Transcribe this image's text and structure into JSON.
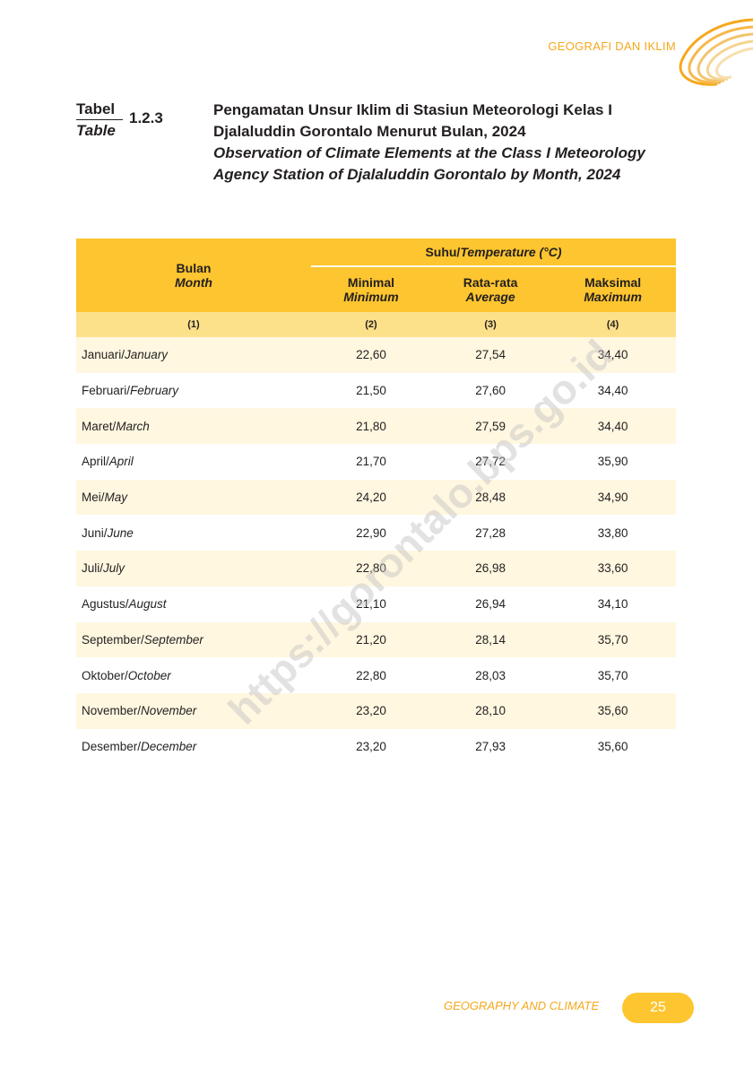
{
  "header": {
    "section": "GEOGRAFI DAN IKLIM"
  },
  "table_meta": {
    "label_id": "Tabel",
    "label_en": "Table",
    "number": "1.2.3",
    "title_id": "Pengamatan Unsur Iklim di Stasiun Meteorologi Kelas I Djalaluddin Gorontalo Menurut Bulan, 2024",
    "title_en": "Observation of Climate Elements at the Class I Meteorology Agency Station of Djalaluddin Gorontalo by Month, 2024"
  },
  "columns": {
    "month_id": "Bulan",
    "month_en": "Month",
    "temp_group_id": "Suhu/",
    "temp_group_en": "Temperature (°C)",
    "min_id": "Minimal",
    "min_en": "Minimum",
    "avg_id": "Rata-rata",
    "avg_en": "Average",
    "max_id": "Maksimal",
    "max_en": "Maximum",
    "idx": [
      "(1)",
      "(2)",
      "(3)",
      "(4)"
    ]
  },
  "rows": [
    {
      "month_id": "Januari/",
      "month_en": "January",
      "min": "22,60",
      "avg": "27,54",
      "max": "34,40"
    },
    {
      "month_id": "Februari/",
      "month_en": "February",
      "min": "21,50",
      "avg": "27,60",
      "max": "34,40"
    },
    {
      "month_id": "Maret/",
      "month_en": "March",
      "min": "21,80",
      "avg": "27,59",
      "max": "34,40"
    },
    {
      "month_id": "April/",
      "month_en": "April",
      "min": "21,70",
      "avg": "27,72",
      "max": "35,90"
    },
    {
      "month_id": "Mei/",
      "month_en": "May",
      "min": "24,20",
      "avg": "28,48",
      "max": "34,90"
    },
    {
      "month_id": "Juni/",
      "month_en": "June",
      "min": "22,90",
      "avg": "27,28",
      "max": "33,80"
    },
    {
      "month_id": "Juli/",
      "month_en": "July",
      "min": "22,80",
      "avg": "26,98",
      "max": "33,60"
    },
    {
      "month_id": "Agustus/",
      "month_en": "August",
      "min": "21,10",
      "avg": "26,94",
      "max": "34,10"
    },
    {
      "month_id": "September/",
      "month_en": "September",
      "min": "21,20",
      "avg": "28,14",
      "max": "35,70"
    },
    {
      "month_id": "Oktober/",
      "month_en": "October",
      "min": "22,80",
      "avg": "28,03",
      "max": "35,70"
    },
    {
      "month_id": "November/",
      "month_en": "November",
      "min": "23,20",
      "avg": "28,10",
      "max": "35,60"
    },
    {
      "month_id": "Desember/",
      "month_en": "December",
      "min": "23,20",
      "avg": "27,93",
      "max": "35,60"
    }
  ],
  "watermark": "https://gorontalo.bps.go.id",
  "footer": {
    "section_en": "GEOGRAPHY AND CLIMATE",
    "page": "25"
  },
  "colors": {
    "accent": "#fdc52f",
    "accent_light": "#fde08a",
    "orange_text": "#f5a81c"
  }
}
